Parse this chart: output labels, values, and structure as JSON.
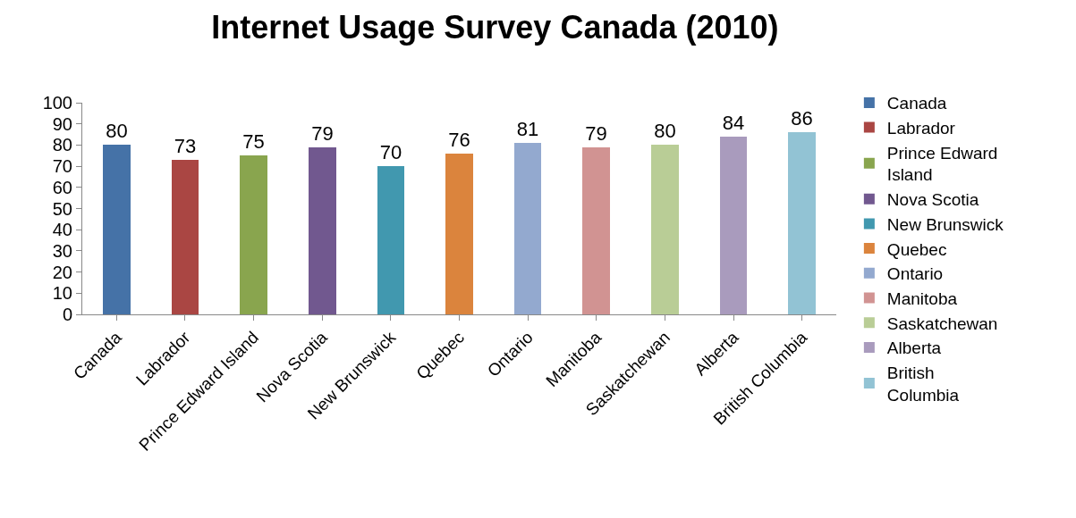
{
  "chart_data": {
    "type": "bar",
    "title": "Internet Usage Survey Canada (2010)",
    "categories": [
      "Canada",
      "Labrador",
      "Prince Edward Island",
      "Nova Scotia",
      "New Brunswick",
      "Quebec",
      "Ontario",
      "Manitoba",
      "Saskatchewan",
      "Alberta",
      "British Columbia"
    ],
    "series": [
      {
        "name": "Canada",
        "color": "#4572a7",
        "values": [
          80,
          null,
          null,
          null,
          null,
          null,
          null,
          null,
          null,
          null,
          null
        ]
      },
      {
        "name": "Labrador",
        "color": "#aa4643",
        "values": [
          null,
          73,
          null,
          null,
          null,
          null,
          null,
          null,
          null,
          null,
          null
        ]
      },
      {
        "name": "Prince Edward Island",
        "color": "#89a54e",
        "values": [
          null,
          null,
          75,
          null,
          null,
          null,
          null,
          null,
          null,
          null,
          null
        ]
      },
      {
        "name": "Nova Scotia",
        "color": "#71588f",
        "values": [
          null,
          null,
          null,
          79,
          null,
          null,
          null,
          null,
          null,
          null,
          null
        ]
      },
      {
        "name": "New Brunswick",
        "color": "#4198af",
        "values": [
          null,
          null,
          null,
          null,
          70,
          null,
          null,
          null,
          null,
          null,
          null
        ]
      },
      {
        "name": "Quebec",
        "color": "#db843d",
        "values": [
          null,
          null,
          null,
          null,
          null,
          76,
          null,
          null,
          null,
          null,
          null
        ]
      },
      {
        "name": "Ontario",
        "color": "#93a9cf",
        "values": [
          null,
          null,
          null,
          null,
          null,
          null,
          81,
          null,
          null,
          null,
          null
        ]
      },
      {
        "name": "Manitoba",
        "color": "#d19392",
        "values": [
          null,
          null,
          null,
          null,
          null,
          null,
          null,
          79,
          null,
          null,
          null
        ]
      },
      {
        "name": "Saskatchewan",
        "color": "#b9cd96",
        "values": [
          null,
          null,
          null,
          null,
          null,
          null,
          null,
          null,
          80,
          null,
          null
        ]
      },
      {
        "name": "Alberta",
        "color": "#a99bbd",
        "values": [
          null,
          null,
          null,
          null,
          null,
          null,
          null,
          null,
          null,
          84,
          null
        ]
      },
      {
        "name": "British Columbia",
        "color": "#92c3d4",
        "values": [
          null,
          null,
          null,
          null,
          null,
          null,
          null,
          null,
          null,
          null,
          86
        ]
      }
    ],
    "ylim": [
      0,
      100
    ],
    "yticks": [
      0,
      10,
      20,
      30,
      40,
      50,
      60,
      70,
      80,
      90,
      100
    ],
    "data_labels": true,
    "legend": "right",
    "grid": false
  }
}
